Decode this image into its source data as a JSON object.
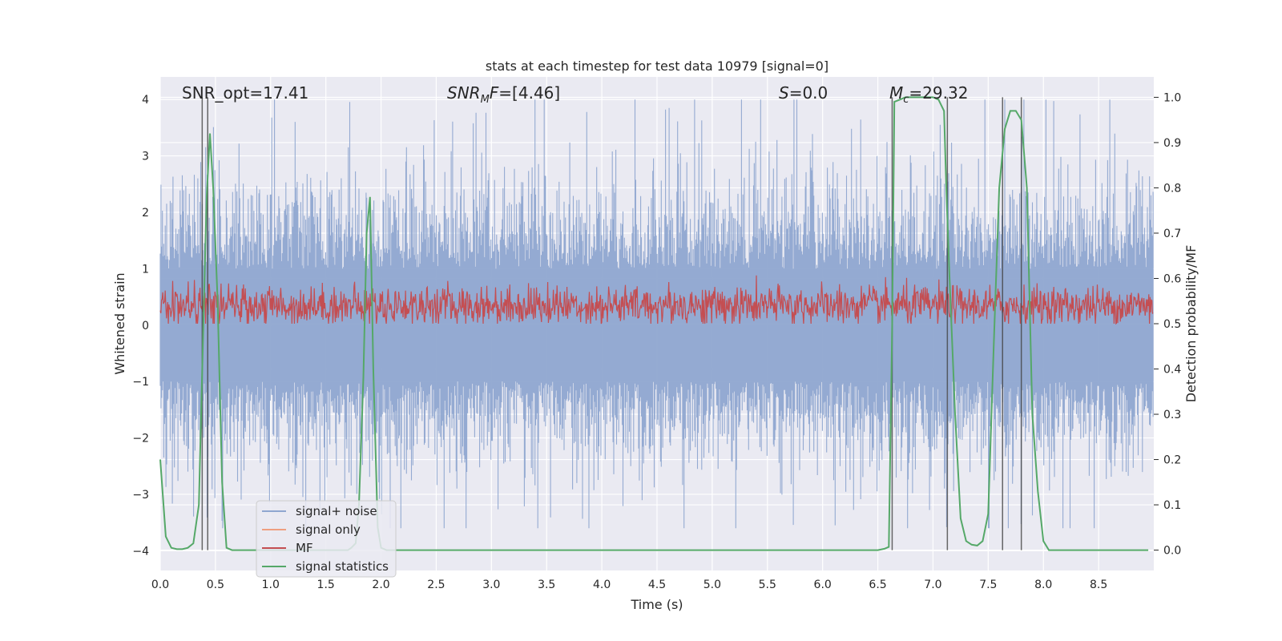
{
  "chart_data": {
    "type": "line",
    "title": "stats at each timestep for test data 10979 [signal=0]",
    "xlabel": "Time (s)",
    "ylabel": "Whitened strain",
    "ylabel_right": "Detection probability/MF",
    "xlim": [
      0.0,
      9.0
    ],
    "ylim": [
      -4.35,
      4.4
    ],
    "ylim_right": [
      -0.045,
      1.045
    ],
    "x_ticks": [
      "0.0",
      "0.5",
      "1.0",
      "1.5",
      "2.0",
      "2.5",
      "3.0",
      "3.5",
      "4.0",
      "4.5",
      "5.0",
      "5.5",
      "6.0",
      "6.5",
      "7.0",
      "7.5",
      "8.0",
      "8.5"
    ],
    "y_ticks": [
      "−4",
      "−3",
      "−2",
      "−1",
      "0",
      "1",
      "2",
      "3",
      "4"
    ],
    "y_ticks_right": [
      "0.0",
      "0.1",
      "0.2",
      "0.3",
      "0.4",
      "0.5",
      "0.6",
      "0.7",
      "0.8",
      "0.9",
      "1.0"
    ],
    "grid": true,
    "legend_position": "lower-left",
    "colors": {
      "background": "#eaeaf2",
      "grid": "#ffffff",
      "signal_noise": "#8fa6d0",
      "signal_only": "#ef9f80",
      "mf": "#c44e52",
      "signal_statistics": "#55a868",
      "vlines": "#444444"
    },
    "annotations": {
      "snr_opt": "SNR_opt=17.41",
      "snr_mf": "=[4.46]",
      "s_value": "=0.0",
      "mc_value": "=29.32"
    },
    "series": [
      {
        "name": "signal+ noise",
        "color": "#8fa6d0",
        "description_value_range": [
          -3.6,
          4.0
        ],
        "envelope_typical": [
          -1.6,
          1.6
        ]
      },
      {
        "name": "signal only",
        "color": "#ef9f80",
        "values": []
      },
      {
        "name": "MF",
        "color": "#c44e52",
        "axis": "right",
        "value_range": [
          0.5,
          0.63
        ]
      },
      {
        "name": "signal statistics",
        "color": "#55a868",
        "axis": "right",
        "x": [
          0.0,
          0.05,
          0.1,
          0.15,
          0.2,
          0.25,
          0.3,
          0.35,
          0.38,
          0.42,
          0.45,
          0.48,
          0.52,
          0.56,
          0.6,
          0.65,
          1.7,
          1.73,
          1.77,
          1.8,
          1.84,
          1.87,
          1.9,
          1.93,
          1.97,
          2.0,
          2.05,
          6.5,
          6.56,
          6.6,
          6.63,
          6.65,
          6.7,
          6.75,
          6.8,
          6.9,
          7.0,
          7.05,
          7.1,
          7.12,
          7.15,
          7.2,
          7.25,
          7.3,
          7.35,
          7.4,
          7.45,
          7.5,
          7.55,
          7.6,
          7.65,
          7.7,
          7.75,
          7.8,
          7.85,
          7.9,
          7.95,
          8.0,
          8.05,
          8.1,
          8.3,
          8.95
        ],
        "y": [
          0.2,
          0.03,
          0.005,
          0.002,
          0.002,
          0.005,
          0.015,
          0.1,
          0.4,
          0.78,
          0.92,
          0.8,
          0.55,
          0.15,
          0.005,
          0.0,
          0.0,
          0.005,
          0.015,
          0.1,
          0.38,
          0.7,
          0.78,
          0.4,
          0.05,
          0.005,
          0.0,
          0.0,
          0.003,
          0.007,
          0.5,
          0.99,
          0.995,
          1.0,
          1.0,
          1.0,
          1.0,
          0.995,
          0.97,
          0.8,
          0.6,
          0.3,
          0.07,
          0.02,
          0.012,
          0.01,
          0.02,
          0.08,
          0.45,
          0.8,
          0.93,
          0.97,
          0.97,
          0.95,
          0.8,
          0.3,
          0.13,
          0.02,
          0.0,
          0.0,
          0.0,
          0.0
        ]
      }
    ],
    "vertical_lines": [
      0.38,
      0.43,
      6.63,
      7.13,
      7.63,
      7.8
    ],
    "legend": [
      "signal+ noise",
      "signal only",
      "MF",
      "signal statistics"
    ]
  }
}
